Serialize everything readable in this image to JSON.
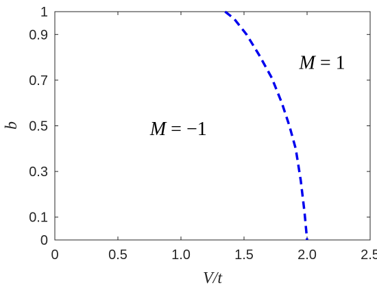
{
  "chart_data": {
    "type": "line",
    "xlabel": "V/t",
    "ylabel": "b",
    "xlim": [
      0,
      2.5
    ],
    "ylim": [
      0,
      1
    ],
    "x_ticks": [
      0,
      0.5,
      1.0,
      1.5,
      2.0,
      2.5
    ],
    "x_tick_labels": [
      "0",
      "0.5",
      "1.0",
      "1.5",
      "2.0",
      "2.5"
    ],
    "y_ticks": [
      0,
      0.1,
      0.3,
      0.5,
      0.7,
      0.9,
      1
    ],
    "y_tick_labels": [
      "0",
      "0.1",
      "0.3",
      "0.5",
      "0.7",
      "0.9",
      "1"
    ],
    "grid": false,
    "series": [
      {
        "style": "dashed",
        "color": "#0000ee",
        "x": [
          1.35,
          1.42,
          1.52,
          1.62,
          1.72,
          1.8,
          1.86,
          1.91,
          1.95,
          1.98,
          2.0
        ],
        "y": [
          1.0,
          0.97,
          0.9,
          0.81,
          0.71,
          0.6,
          0.5,
          0.4,
          0.26,
          0.12,
          0.0
        ]
      }
    ],
    "annotations": [
      {
        "text_var": "M",
        "text_rest": " = 1",
        "x": 2.12,
        "y": 0.75
      },
      {
        "text_var": "M",
        "text_rest": " = −1",
        "x": 0.98,
        "y": 0.46
      }
    ]
  }
}
